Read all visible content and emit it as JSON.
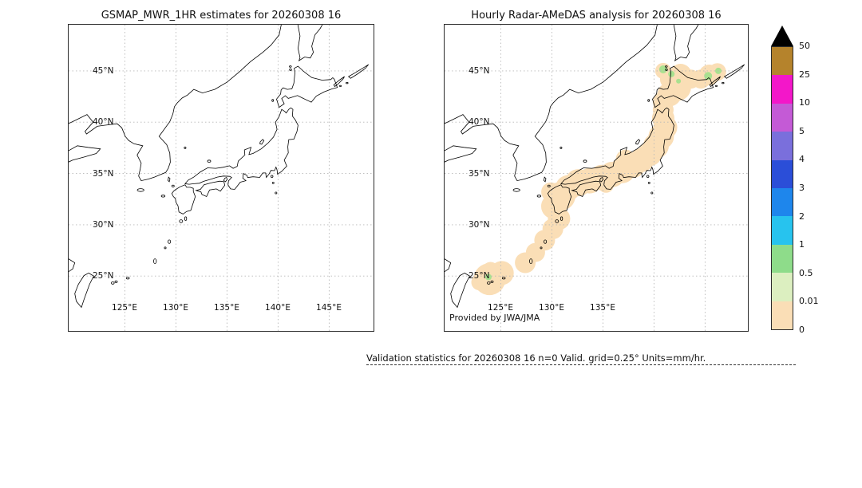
{
  "colors": {
    "background": "#ffffff",
    "coastline": "#000000",
    "grid": "#b8b8b8",
    "frame": "#2b2b2b"
  },
  "panels": [
    {
      "title": "GSMAP_MWR_1HR estimates for 20260308 16",
      "lat_ticks": [
        "45°N",
        "40°N",
        "35°N",
        "30°N",
        "25°N"
      ],
      "lon_ticks": [
        "125°E",
        "130°E",
        "135°E",
        "140°E",
        "145°E"
      ],
      "annotation": ""
    },
    {
      "title": "Hourly Radar-AMeDAS analysis for 20260308 16",
      "lat_ticks": [
        "45°N",
        "40°N",
        "35°N",
        "30°N",
        "25°N"
      ],
      "lon_ticks": [
        "125°E",
        "130°E",
        "135°E"
      ],
      "annotation": "Provided by JWA/JMA",
      "precip_blobs": {
        "trace_color": "#fadeb6",
        "light_color": "#a9e18f",
        "trace": [
          [
            122.9,
            24.4,
            10
          ],
          [
            123.9,
            24.7,
            20
          ],
          [
            125.1,
            25.3,
            15
          ],
          [
            124.0,
            25.6,
            10
          ],
          [
            127.4,
            26.3,
            13
          ],
          [
            128.4,
            27.3,
            12
          ],
          [
            129.3,
            28.5,
            13
          ],
          [
            130.1,
            29.6,
            13
          ],
          [
            130.7,
            30.6,
            14
          ],
          [
            130.2,
            31.8,
            16
          ],
          [
            130.9,
            32.8,
            18
          ],
          [
            129.9,
            33.2,
            12
          ],
          [
            131.6,
            33.6,
            16
          ],
          [
            132.6,
            34.1,
            17
          ],
          [
            133.7,
            34.3,
            16
          ],
          [
            134.9,
            34.6,
            16
          ],
          [
            135.9,
            34.9,
            16
          ],
          [
            135.3,
            33.9,
            10
          ],
          [
            136.9,
            35.3,
            16
          ],
          [
            137.9,
            35.8,
            16
          ],
          [
            137.2,
            36.4,
            12
          ],
          [
            138.8,
            36.3,
            15
          ],
          [
            139.6,
            36.9,
            15
          ],
          [
            140.2,
            37.7,
            16
          ],
          [
            140.7,
            38.6,
            16
          ],
          [
            141.1,
            39.5,
            15
          ],
          [
            140.9,
            40.4,
            14
          ],
          [
            140.9,
            41.2,
            13
          ],
          [
            140.9,
            42.0,
            13
          ],
          [
            141.5,
            42.7,
            15
          ],
          [
            142.3,
            43.4,
            17
          ],
          [
            141.6,
            44.2,
            13
          ],
          [
            142.6,
            44.6,
            14
          ],
          [
            143.6,
            44.2,
            12
          ],
          [
            144.6,
            44.2,
            12
          ],
          [
            145.4,
            44.6,
            13
          ],
          [
            146.2,
            44.9,
            11
          ],
          [
            140.9,
            45.0,
            10
          ]
        ],
        "light": [
          [
            123.8,
            24.9,
            4
          ],
          [
            140.9,
            45.15,
            5
          ],
          [
            141.7,
            44.7,
            4
          ],
          [
            145.3,
            44.5,
            5
          ],
          [
            146.3,
            45.0,
            4
          ],
          [
            142.4,
            44.0,
            3
          ]
        ]
      }
    }
  ],
  "colorbar": {
    "labels": [
      "50",
      "25",
      "10",
      "5",
      "4",
      "3",
      "2",
      "1",
      "0.5",
      "0.01",
      "0"
    ],
    "bin_colors_top_to_bottom": [
      "#b5832c",
      "#f317c9",
      "#c45ad6",
      "#7a6fdc",
      "#2b4ed8",
      "#1e86ec",
      "#27c3ee",
      "#8edc8a",
      "#dcefc0",
      "#fadeb6"
    ],
    "overflow_marker": "black-up-triangle"
  },
  "footer": "Validation statistics for 20260308 16  n=0 Valid. grid=0.25° Units=mm/hr."
}
